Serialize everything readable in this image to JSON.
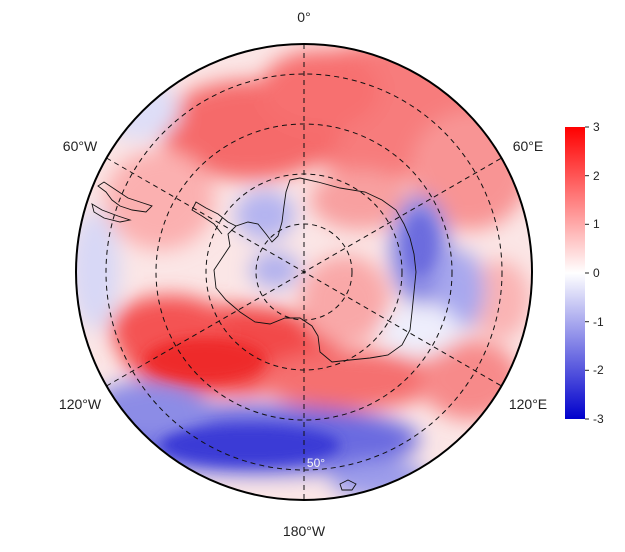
{
  "map": {
    "projection": "south-polar-stereographic",
    "longitude_labels": {
      "top": "0°",
      "upper_left": "60°W",
      "upper_right": "60°E",
      "lower_left": "120°W",
      "lower_right": "120°E",
      "bottom": "180°W"
    },
    "latitude_label": "50°",
    "graticule": "dashed",
    "field_regions": [
      {
        "region": "outer ring 0-90E",
        "sign": "positive"
      },
      {
        "region": "Weddell / Atlantic sector",
        "sign": "positive"
      },
      {
        "region": "Indian sector 60-120E near coast",
        "sign": "negative"
      },
      {
        "region": "Ross / Pacific 150W-180",
        "sign": "strongly negative"
      },
      {
        "region": "Amundsen-Bellingshausen 90-140W",
        "sign": "strongly positive"
      },
      {
        "region": "East Antarctica interior",
        "sign": "positive"
      }
    ]
  },
  "colorbar": {
    "ticks": [
      "3",
      "2",
      "1",
      "0",
      "-1",
      "-2",
      "-3"
    ],
    "min": -3,
    "max": 3,
    "colors": {
      "low": "#0000cc",
      "mid": "#ffffff",
      "high": "#ff0000"
    }
  }
}
